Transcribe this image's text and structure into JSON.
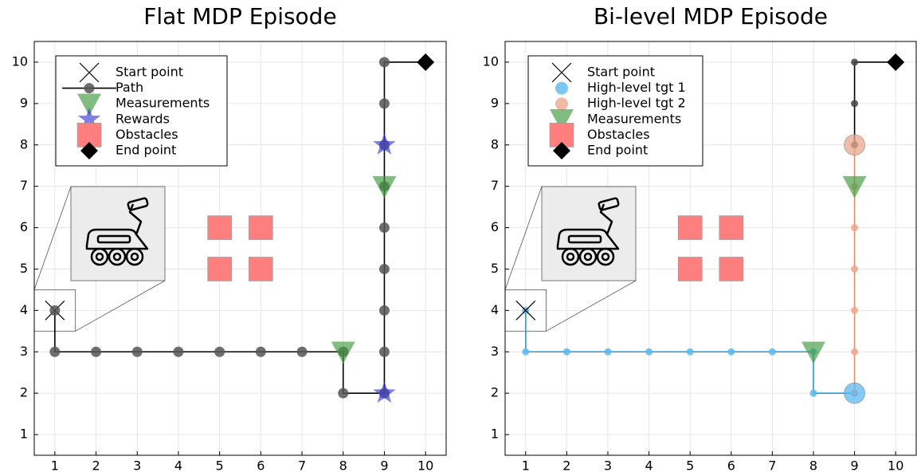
{
  "chart_data": [
    {
      "type": "scatter",
      "title": "Flat MDP Episode",
      "xlim": [
        0.5,
        10.5
      ],
      "ylim": [
        0.5,
        10.5
      ],
      "xticks": [
        1,
        2,
        3,
        4,
        5,
        6,
        7,
        8,
        9,
        10
      ],
      "yticks": [
        1,
        2,
        3,
        4,
        5,
        6,
        7,
        8,
        9,
        10
      ],
      "grid": true,
      "series": [
        {
          "name": "Start point",
          "marker": "x",
          "color": "#000000",
          "x": [
            1
          ],
          "y": [
            4
          ]
        },
        {
          "name": "Path",
          "marker": "circle",
          "line": true,
          "color": "#000000",
          "marker_color": "#555555",
          "x": [
            1,
            1,
            2,
            3,
            4,
            5,
            6,
            7,
            8,
            8,
            9,
            9,
            9,
            9,
            9,
            9,
            9,
            9,
            9,
            10
          ],
          "y": [
            4,
            3,
            3,
            3,
            3,
            3,
            3,
            3,
            3,
            2,
            2,
            3,
            4,
            5,
            6,
            7,
            8,
            9,
            10,
            10
          ]
        },
        {
          "name": "Measurements",
          "marker": "triangle",
          "color": "#3d9a3d",
          "x": [
            8,
            9
          ],
          "y": [
            3,
            7
          ]
        },
        {
          "name": "Rewards",
          "marker": "star",
          "color": "#3b3bd6",
          "x": [
            9,
            9
          ],
          "y": [
            8,
            2
          ]
        },
        {
          "name": "Obstacles",
          "marker": "square",
          "color": "#ff7f7f",
          "x": [
            5,
            6,
            5,
            6
          ],
          "y": [
            6,
            6,
            5,
            5
          ]
        },
        {
          "name": "End point",
          "marker": "diamond",
          "color": "#000000",
          "x": [
            10
          ],
          "y": [
            10
          ]
        }
      ]
    },
    {
      "type": "scatter",
      "title": "Bi-level MDP Episode",
      "xlim": [
        0.5,
        10.5
      ],
      "ylim": [
        0.5,
        10.5
      ],
      "xticks": [
        1,
        2,
        3,
        4,
        5,
        6,
        7,
        8,
        9,
        10
      ],
      "yticks": [
        1,
        2,
        3,
        4,
        5,
        6,
        7,
        8,
        9,
        10
      ],
      "grid": true,
      "series": [
        {
          "marker": "dot",
          "line": true,
          "color": "#1e9be0",
          "marker_color": "#5bb8ee",
          "x": [
            1,
            1,
            2,
            3,
            4,
            5,
            6,
            7,
            8,
            8,
            9
          ],
          "y": [
            4,
            3,
            3,
            3,
            3,
            3,
            3,
            3,
            3,
            2,
            2
          ]
        },
        {
          "marker": "dot",
          "line": true,
          "color": "#e0906e",
          "marker_color": "#eaa88e",
          "x": [
            9,
            9,
            9,
            9,
            9,
            9,
            9
          ],
          "y": [
            2,
            3,
            4,
            5,
            6,
            7,
            8
          ]
        },
        {
          "marker": "dot",
          "line": true,
          "color": "#000000",
          "marker_color": "#444444",
          "x": [
            9,
            9,
            9,
            10
          ],
          "y": [
            8,
            9,
            10,
            10
          ]
        },
        {
          "name": "Start point",
          "marker": "x",
          "color": "#000000",
          "x": [
            1
          ],
          "y": [
            4
          ]
        },
        {
          "name": "High-level tgt 1",
          "marker": "big-circle",
          "color": "#5bb8ee",
          "x": [
            9
          ],
          "y": [
            2
          ]
        },
        {
          "name": "High-level tgt 2",
          "marker": "big-circle",
          "color": "#eaa88e",
          "x": [
            9
          ],
          "y": [
            8
          ]
        },
        {
          "name": "Measurements",
          "marker": "triangle",
          "color": "#3d9a3d",
          "x": [
            8,
            9
          ],
          "y": [
            3,
            7
          ]
        },
        {
          "name": "Obstacles",
          "marker": "square",
          "color": "#ff7f7f",
          "x": [
            5,
            6,
            5,
            6
          ],
          "y": [
            6,
            6,
            5,
            5
          ]
        },
        {
          "name": "End point",
          "marker": "diamond",
          "color": "#000000",
          "x": [
            10
          ],
          "y": [
            10
          ]
        }
      ]
    }
  ]
}
